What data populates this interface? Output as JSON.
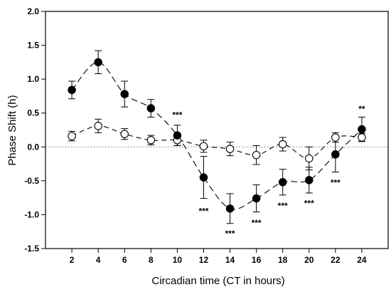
{
  "chart_data": {
    "type": "line",
    "title": "",
    "xlabel": "Circadian time (CT in hours)",
    "ylabel": "Phase Shift (h)",
    "xlim": [
      0,
      26
    ],
    "ylim": [
      -1.5,
      2.0
    ],
    "x_ticks": [
      2,
      4,
      6,
      8,
      10,
      12,
      14,
      16,
      18,
      20,
      22,
      24
    ],
    "y_ticks": [
      -1.5,
      -1.0,
      -0.5,
      0.0,
      0.5,
      1.0,
      1.5,
      2.0
    ],
    "y_tick_labels": [
      "-1.5",
      "-1.0",
      "-0.5",
      "0.0",
      "0.5",
      "1.0",
      "1.5",
      "2.0"
    ],
    "grid": false,
    "reference_line_y": 0,
    "series": [
      {
        "marker": "filled-circle",
        "line_style": "long-dash",
        "x": [
          2,
          4,
          6,
          8,
          10,
          12,
          14,
          16,
          18,
          20,
          22,
          24
        ],
        "y": [
          0.84,
          1.25,
          0.78,
          0.57,
          0.17,
          -0.45,
          -0.91,
          -0.76,
          -0.52,
          -0.49,
          -0.11,
          0.26
        ],
        "error": [
          0.13,
          0.17,
          0.19,
          0.13,
          0.15,
          0.31,
          0.22,
          0.2,
          0.19,
          0.19,
          0.26,
          0.18
        ]
      },
      {
        "marker": "open-circle",
        "line_style": "dash",
        "x": [
          2,
          4,
          6,
          8,
          10,
          12,
          14,
          16,
          18,
          20,
          22,
          24
        ],
        "y": [
          0.16,
          0.31,
          0.19,
          0.1,
          0.1,
          0.01,
          -0.03,
          -0.12,
          0.04,
          -0.17,
          0.14,
          0.14
        ],
        "error": [
          0.07,
          0.1,
          0.08,
          0.07,
          0.08,
          0.09,
          0.1,
          0.14,
          0.1,
          0.17,
          0.07,
          0.06
        ]
      }
    ],
    "annotations": [
      {
        "x": 10,
        "y": 0.47,
        "text": "***"
      },
      {
        "x": 12,
        "y": -0.95,
        "text": "***"
      },
      {
        "x": 14,
        "y": -1.28,
        "text": "***"
      },
      {
        "x": 16,
        "y": -1.12,
        "text": "***"
      },
      {
        "x": 18,
        "y": -0.87,
        "text": "***"
      },
      {
        "x": 20,
        "y": -0.83,
        "text": "***"
      },
      {
        "x": 22,
        "y": -0.53,
        "text": "***"
      },
      {
        "x": 24,
        "y": 0.56,
        "text": "**"
      }
    ]
  }
}
